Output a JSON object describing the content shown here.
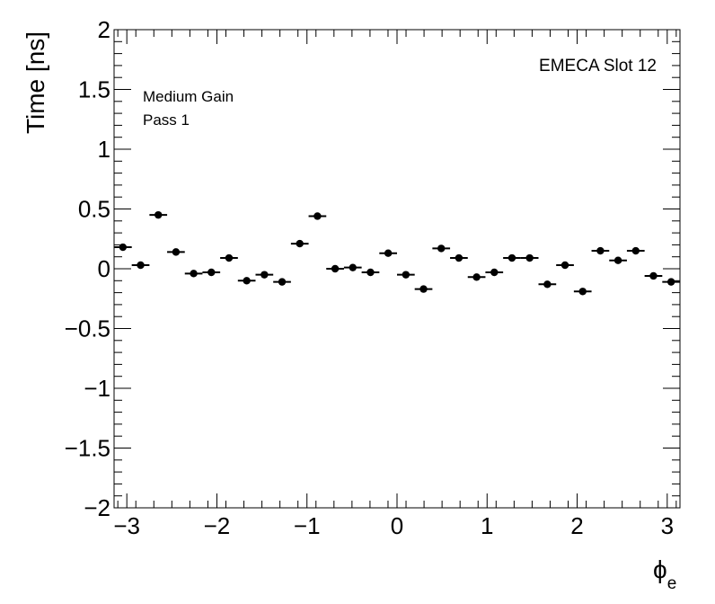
{
  "chart_data": {
    "type": "scatter",
    "xlabel_main": "ϕ",
    "xlabel_sub": "e",
    "ylabel": "Time [ns]",
    "xlim": [
      -3.1416,
      3.1416
    ],
    "ylim": [
      -2,
      2
    ],
    "x_ticks": [
      -3,
      -2,
      -1,
      0,
      1,
      2,
      3
    ],
    "x_tick_labels": [
      "−3",
      "−2",
      "−1",
      "0",
      "1",
      "2",
      "3"
    ],
    "y_ticks": [
      -2,
      -1.5,
      -1,
      -0.5,
      0,
      0.5,
      1,
      1.5,
      2
    ],
    "y_tick_labels": [
      "−2",
      "−1.5",
      "−1",
      "−0.5",
      "0",
      "0.5",
      "1",
      "1.5",
      "2"
    ],
    "grid": false,
    "annotations": {
      "slot": "EMECA Slot 12",
      "gain": "Medium Gain",
      "pass": "Pass 1"
    },
    "series": [
      {
        "x": [
          -3.0434,
          -2.8471,
          -2.6507,
          -2.4544,
          -2.258,
          -2.0617,
          -1.8653,
          -1.669,
          -1.4726,
          -1.2763,
          -1.0799,
          -0.8836,
          -0.6872,
          -0.4909,
          -0.2945,
          -0.0982,
          0.0982,
          0.2945,
          0.4909,
          0.6872,
          0.8836,
          1.0799,
          1.2763,
          1.4726,
          1.669,
          1.8653,
          2.0617,
          2.258,
          2.4544,
          2.6507,
          2.8471,
          3.0434
        ],
        "y": [
          0.18,
          0.03,
          0.45,
          0.14,
          -0.04,
          -0.03,
          0.09,
          -0.1,
          -0.05,
          -0.11,
          0.21,
          0.44,
          0.0,
          0.01,
          -0.03,
          0.13,
          -0.05,
          -0.17,
          0.17,
          0.09,
          -0.07,
          -0.03,
          0.09,
          0.09,
          -0.13,
          0.03,
          -0.19,
          0.15,
          0.07,
          0.15,
          -0.06,
          -0.11
        ]
      }
    ]
  }
}
